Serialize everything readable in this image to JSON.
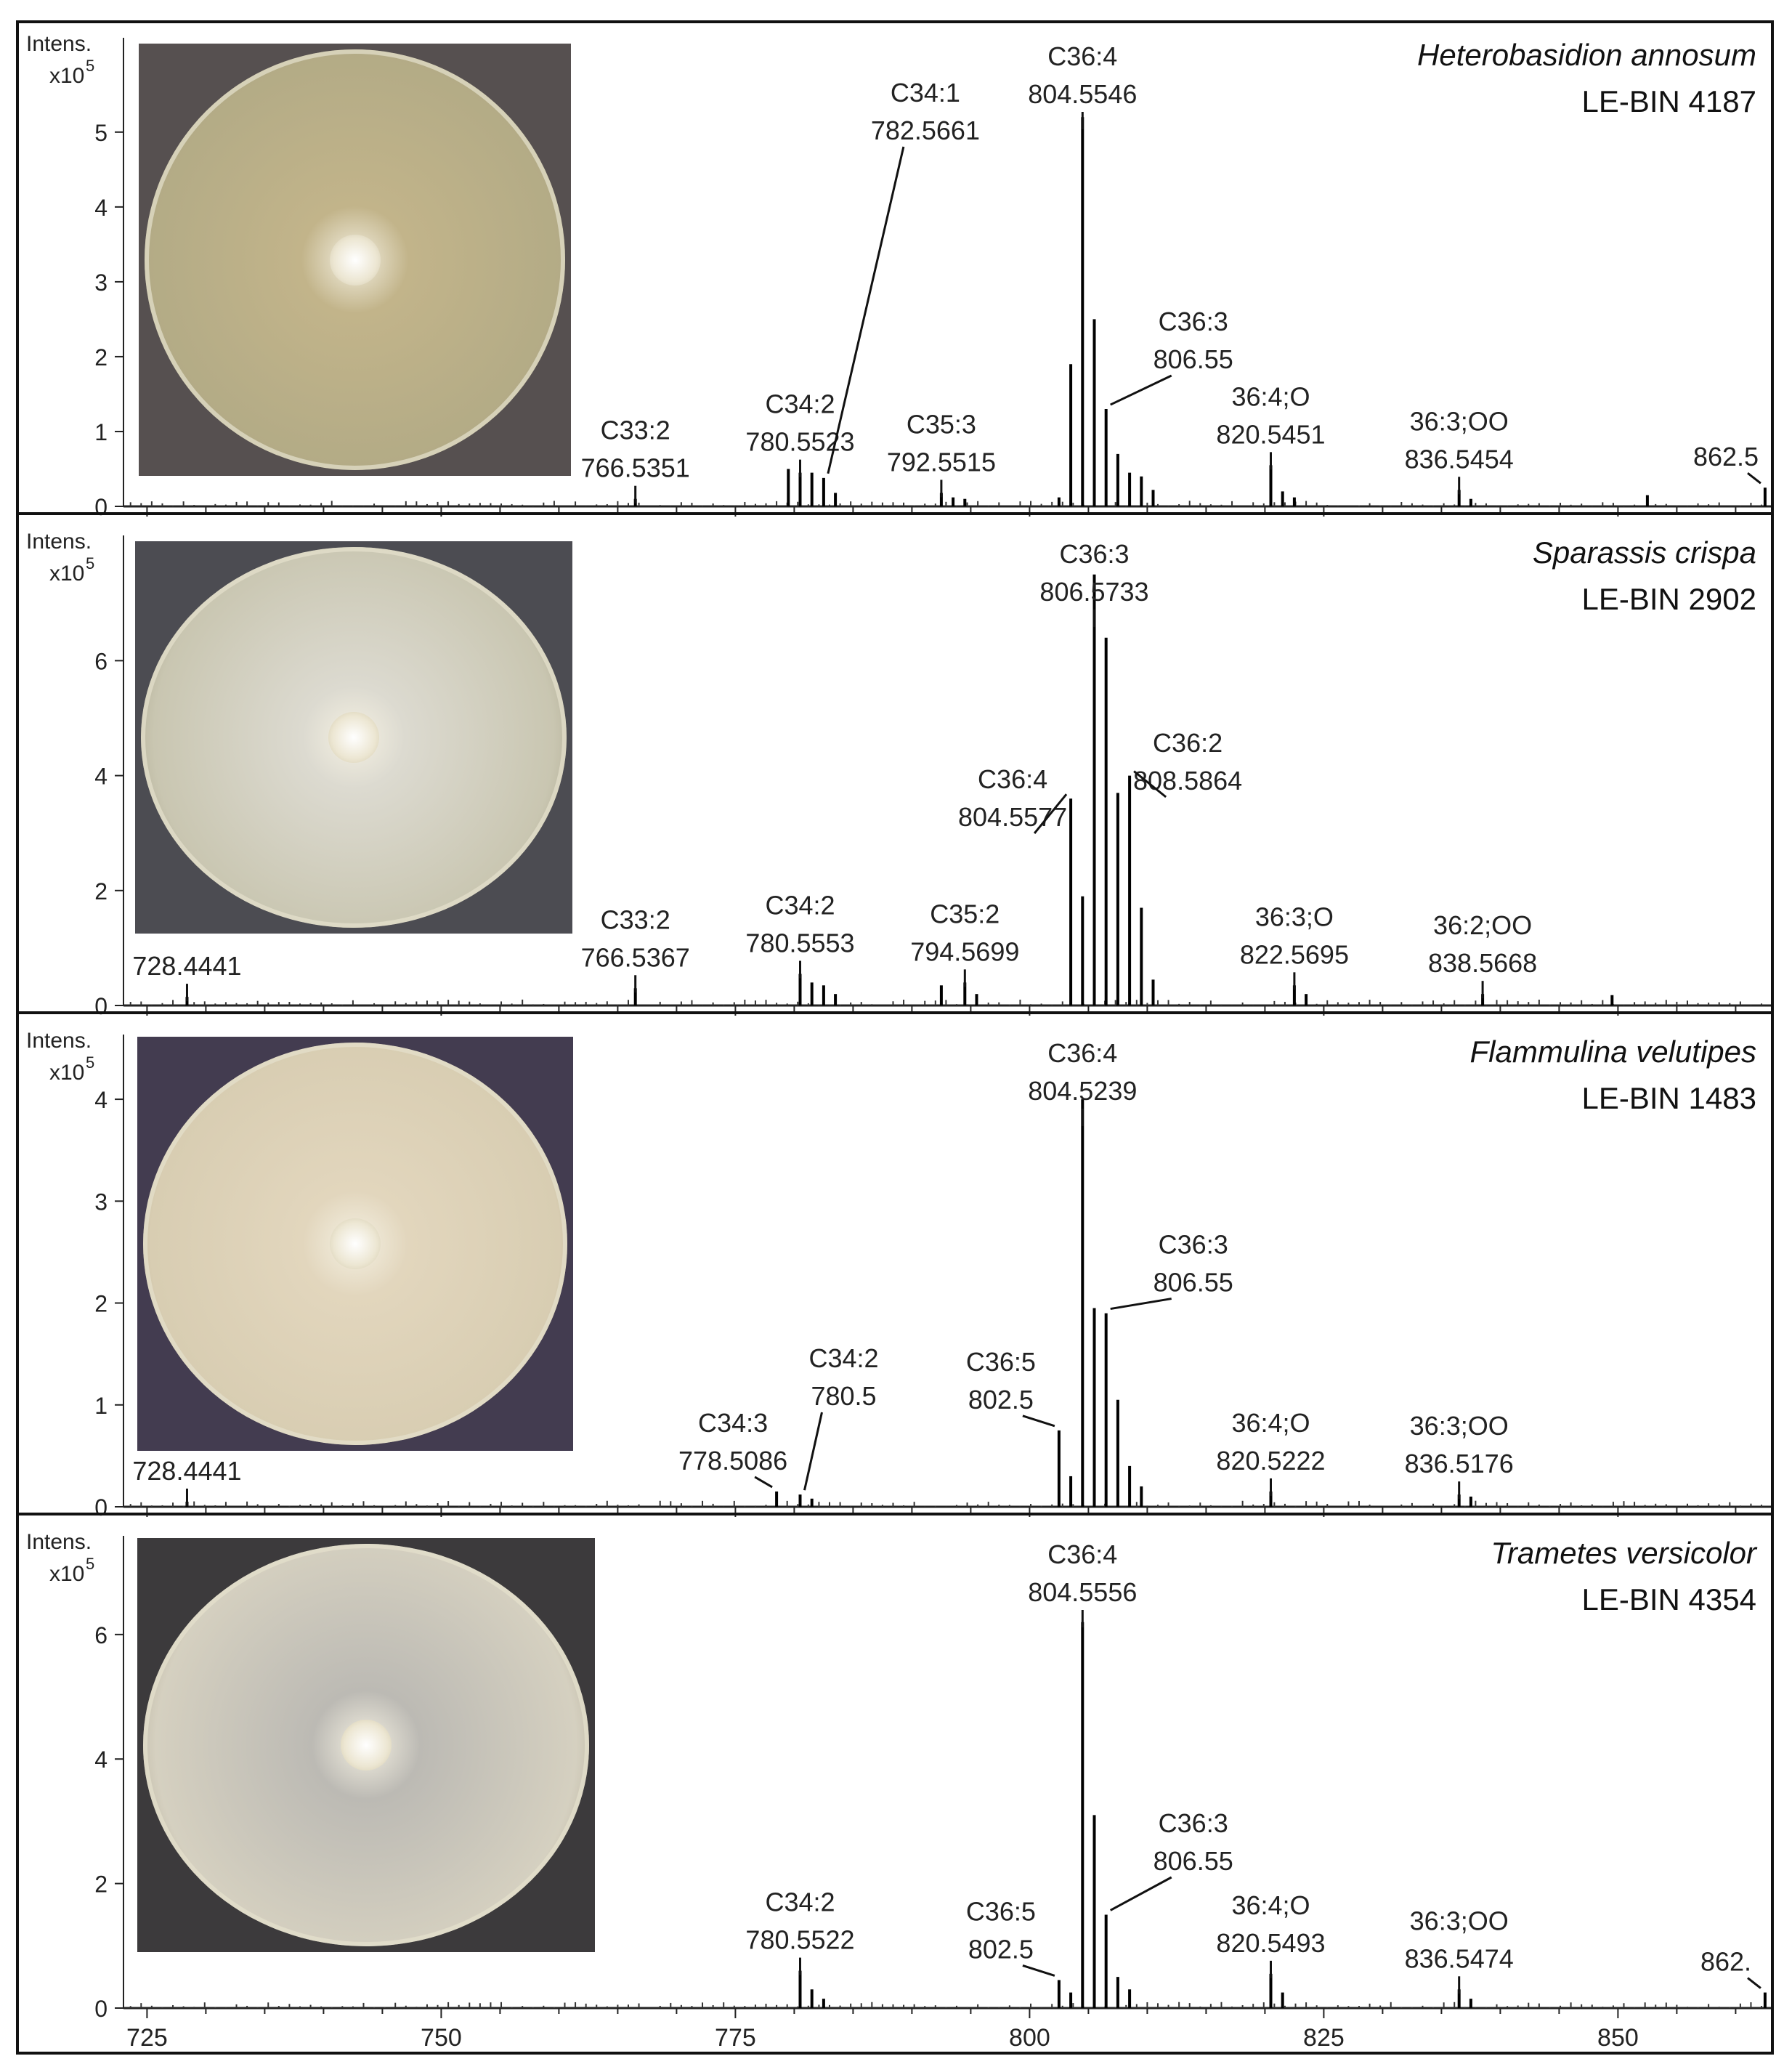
{
  "chart_data": [
    {
      "type": "line",
      "panel_label": "Heterobasidion annosum",
      "strain": "LE-BIN 4187",
      "y_axis_title": "Intens.",
      "y_scale": "x10",
      "y_scale_exp": "5",
      "ylim": [
        0,
        5.6
      ],
      "yticks": [
        0,
        1,
        2,
        3,
        4,
        5
      ],
      "xlim": [
        723,
        863
      ],
      "peaks": [
        {
          "x": 766.5,
          "y": 0.1
        },
        {
          "x": 779.5,
          "y": 0.5
        },
        {
          "x": 780.5,
          "y": 0.45
        },
        {
          "x": 781.5,
          "y": 0.45
        },
        {
          "x": 782.5,
          "y": 0.38
        },
        {
          "x": 783.5,
          "y": 0.18
        },
        {
          "x": 792.5,
          "y": 0.18
        },
        {
          "x": 793.5,
          "y": 0.12
        },
        {
          "x": 794.5,
          "y": 0.1
        },
        {
          "x": 802.5,
          "y": 0.12
        },
        {
          "x": 803.5,
          "y": 1.9
        },
        {
          "x": 804.5,
          "y": 5.2
        },
        {
          "x": 805.5,
          "y": 2.5
        },
        {
          "x": 806.5,
          "y": 1.3
        },
        {
          "x": 807.5,
          "y": 0.7
        },
        {
          "x": 808.5,
          "y": 0.45
        },
        {
          "x": 809.5,
          "y": 0.4
        },
        {
          "x": 810.5,
          "y": 0.22
        },
        {
          "x": 820.5,
          "y": 0.55
        },
        {
          "x": 821.5,
          "y": 0.2
        },
        {
          "x": 822.5,
          "y": 0.12
        },
        {
          "x": 836.5,
          "y": 0.22
        },
        {
          "x": 837.5,
          "y": 0.1
        },
        {
          "x": 852.5,
          "y": 0.15
        },
        {
          "x": 862.5,
          "y": 0.25
        }
      ],
      "annotations": [
        {
          "name": "C33:2",
          "mz": "766.5351",
          "x": 766.5
        },
        {
          "name": "C34:2",
          "mz": "780.5523",
          "x": 780.5
        },
        {
          "name": "C34:1",
          "mz": "782.5661",
          "x": 782.5
        },
        {
          "name": "C35:3",
          "mz": "792.5515",
          "x": 792.5
        },
        {
          "name": "C36:4",
          "mz": "804.5546",
          "x": 804.5
        },
        {
          "name": "C36:3",
          "mz": "806.55",
          "x": 806.5
        },
        {
          "name": "36:4;O",
          "mz": "820.5451",
          "x": 820.5
        },
        {
          "name": "36:3;OO",
          "mz": "836.5454",
          "x": 836.5
        },
        {
          "name": "",
          "mz": "862.5",
          "x": 862.5
        }
      ]
    },
    {
      "type": "line",
      "panel_label": "Sparassis crispa",
      "strain": "LE-BIN 2902",
      "y_axis_title": "Intens.",
      "y_scale": "x10",
      "y_scale_exp": "5",
      "ylim": [
        0,
        7.8
      ],
      "yticks": [
        0,
        2,
        4,
        6
      ],
      "xlim": [
        723,
        863
      ],
      "peaks": [
        {
          "x": 728.4,
          "y": 0.15
        },
        {
          "x": 766.5,
          "y": 0.3
        },
        {
          "x": 780.5,
          "y": 0.55
        },
        {
          "x": 781.5,
          "y": 0.4
        },
        {
          "x": 782.5,
          "y": 0.35
        },
        {
          "x": 783.5,
          "y": 0.2
        },
        {
          "x": 792.5,
          "y": 0.35
        },
        {
          "x": 794.5,
          "y": 0.4
        },
        {
          "x": 795.5,
          "y": 0.2
        },
        {
          "x": 803.5,
          "y": 3.6
        },
        {
          "x": 804.5,
          "y": 1.9
        },
        {
          "x": 805.5,
          "y": 7.5
        },
        {
          "x": 806.5,
          "y": 6.4
        },
        {
          "x": 807.5,
          "y": 3.7
        },
        {
          "x": 808.5,
          "y": 4.0
        },
        {
          "x": 809.5,
          "y": 1.7
        },
        {
          "x": 810.5,
          "y": 0.45
        },
        {
          "x": 822.5,
          "y": 0.35
        },
        {
          "x": 823.5,
          "y": 0.2
        },
        {
          "x": 838.5,
          "y": 0.2
        },
        {
          "x": 849.5,
          "y": 0.18
        }
      ],
      "annotations": [
        {
          "name": "",
          "mz": "728.4441",
          "x": 728.4
        },
        {
          "name": "C33:2",
          "mz": "766.5367",
          "x": 766.5
        },
        {
          "name": "C34:2",
          "mz": "780.5553",
          "x": 780.5
        },
        {
          "name": "C35:2",
          "mz": "794.5699",
          "x": 794.5
        },
        {
          "name": "C36:4",
          "mz": "804.5577",
          "x": 803.5
        },
        {
          "name": "C36:3",
          "mz": "806.5733",
          "x": 805.5
        },
        {
          "name": "C36:2",
          "mz": "808.5864",
          "x": 808.5
        },
        {
          "name": "36:3;O",
          "mz": "822.5695",
          "x": 822.5
        },
        {
          "name": "36:2;OO",
          "mz": "838.5668",
          "x": 838.5
        }
      ]
    },
    {
      "type": "line",
      "panel_label": "Flammulina velutipes",
      "strain": "LE-BIN 1483",
      "y_axis_title": "Intens.",
      "y_scale": "x10",
      "y_scale_exp": "5",
      "ylim": [
        0,
        4.4
      ],
      "yticks": [
        0,
        1,
        2,
        3,
        4
      ],
      "xlim": [
        723,
        863
      ],
      "peaks": [
        {
          "x": 728.4,
          "y": 0.05
        },
        {
          "x": 778.5,
          "y": 0.15
        },
        {
          "x": 780.5,
          "y": 0.12
        },
        {
          "x": 781.5,
          "y": 0.08
        },
        {
          "x": 802.5,
          "y": 0.75
        },
        {
          "x": 803.5,
          "y": 0.3
        },
        {
          "x": 804.5,
          "y": 4.0
        },
        {
          "x": 805.5,
          "y": 1.95
        },
        {
          "x": 806.5,
          "y": 1.9
        },
        {
          "x": 807.5,
          "y": 1.05
        },
        {
          "x": 808.5,
          "y": 0.4
        },
        {
          "x": 809.5,
          "y": 0.2
        },
        {
          "x": 820.5,
          "y": 0.15
        },
        {
          "x": 836.5,
          "y": 0.12
        },
        {
          "x": 837.5,
          "y": 0.1
        }
      ],
      "annotations": [
        {
          "name": "",
          "mz": "728.4441",
          "x": 728.4
        },
        {
          "name": "C34:3",
          "mz": "778.5086",
          "x": 778.5
        },
        {
          "name": "C34:2",
          "mz": "780.5",
          "x": 780.5
        },
        {
          "name": "C36:5",
          "mz": "802.5",
          "x": 802.5
        },
        {
          "name": "C36:4",
          "mz": "804.5239",
          "x": 804.5
        },
        {
          "name": "C36:3",
          "mz": "806.55",
          "x": 806.5
        },
        {
          "name": "36:4;O",
          "mz": "820.5222",
          "x": 820.5
        },
        {
          "name": "36:3;OO",
          "mz": "836.5176",
          "x": 836.5
        }
      ]
    },
    {
      "type": "line",
      "panel_label": "Trametes versicolor",
      "strain": "LE-BIN 4354",
      "y_axis_title": "Intens.",
      "y_scale": "x10",
      "y_scale_exp": "5",
      "ylim": [
        0,
        7.2
      ],
      "yticks": [
        0,
        2,
        4,
        6
      ],
      "xlim": [
        723,
        863
      ],
      "xticks": [
        725,
        750,
        775,
        800,
        825,
        850
      ],
      "peaks": [
        {
          "x": 780.5,
          "y": 0.6
        },
        {
          "x": 781.5,
          "y": 0.3
        },
        {
          "x": 782.5,
          "y": 0.15
        },
        {
          "x": 802.5,
          "y": 0.45
        },
        {
          "x": 803.5,
          "y": 0.25
        },
        {
          "x": 804.5,
          "y": 6.2
        },
        {
          "x": 805.5,
          "y": 3.1
        },
        {
          "x": 806.5,
          "y": 1.5
        },
        {
          "x": 807.5,
          "y": 0.5
        },
        {
          "x": 808.5,
          "y": 0.3
        },
        {
          "x": 820.5,
          "y": 0.55
        },
        {
          "x": 821.5,
          "y": 0.25
        },
        {
          "x": 836.5,
          "y": 0.3
        },
        {
          "x": 837.5,
          "y": 0.15
        },
        {
          "x": 862.5,
          "y": 0.25
        }
      ],
      "annotations": [
        {
          "name": "C34:2",
          "mz": "780.5522",
          "x": 780.5
        },
        {
          "name": "C36:5",
          "mz": "802.5",
          "x": 802.5
        },
        {
          "name": "C36:4",
          "mz": "804.5556",
          "x": 804.5
        },
        {
          "name": "C36:3",
          "mz": "806.55",
          "x": 806.5
        },
        {
          "name": "36:4;O",
          "mz": "820.5493",
          "x": 820.5
        },
        {
          "name": "36:3;OO",
          "mz": "836.5474",
          "x": 836.5
        },
        {
          "name": "",
          "mz": "862.",
          "x": 862.5
        }
      ]
    }
  ],
  "photos": [
    {
      "icon": "petri-dish-photo",
      "bg": "#565050",
      "dish": "#b3ab86",
      "colony": "#c2b48a"
    },
    {
      "icon": "petri-dish-photo",
      "bg": "#4c4c52",
      "dish": "#c9c6b1",
      "colony": "#dcdad0"
    },
    {
      "icon": "petri-dish-photo",
      "bg": "#433c50",
      "dish": "#d8cdb2",
      "colony": "#e2d6bd"
    },
    {
      "icon": "petri-dish-photo",
      "bg": "#3c3a3c",
      "dish": "#d5d0c0",
      "colony": "#bcbab4"
    }
  ]
}
